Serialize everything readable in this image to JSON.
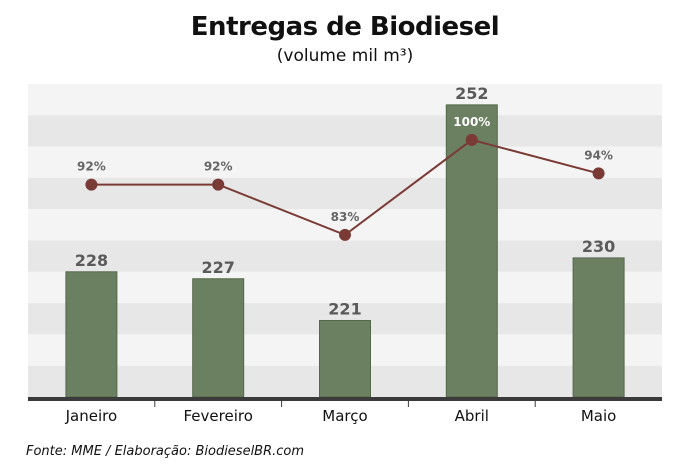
{
  "chart_data": {
    "type": "bar",
    "title": "Entregas de Biodiesel",
    "subtitle": "(volume mil m³)",
    "categories": [
      "Janeiro",
      "Fevereiro",
      "Março",
      "Abril",
      "Maio"
    ],
    "series": [
      {
        "values": [
          228,
          227,
          221,
          252,
          230
        ]
      },
      {
        "type": "line",
        "values": [
          92,
          92,
          83,
          100,
          94
        ],
        "labels": [
          "92%",
          "92%",
          "83%",
          "100%",
          "94%"
        ]
      }
    ],
    "ylim": [
      210,
      255
    ],
    "line_ylim": [
      54,
      110
    ],
    "grid": "alternating-bands",
    "legend": "none"
  },
  "colors": {
    "bar": "#6b7f61",
    "bar_stroke": "#55684c",
    "line": "#7a3b36",
    "band_light": "#f4f4f4",
    "band_dark": "#e7e7e7",
    "axis": "#3a3a3a",
    "bar_label": "#5a5a5a"
  },
  "source": "Fonte:  MME / Elaboração: BiodieselBR.com"
}
